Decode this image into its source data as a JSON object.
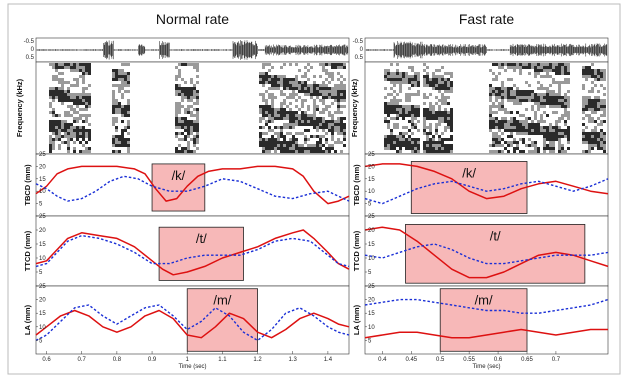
{
  "columns": [
    {
      "title": "Normal rate",
      "xlabel": "Time (sec)",
      "xlim": [
        0.57,
        1.46
      ],
      "xticks": [
        "0.6",
        "0.7",
        "0.8",
        "0.9",
        "1",
        "1.1",
        "1.2",
        "1.3",
        "1.4"
      ],
      "xtick_values": [
        0.6,
        0.7,
        0.8,
        0.9,
        1.0,
        1.1,
        1.2,
        1.3,
        1.4
      ]
    },
    {
      "title": "Fast rate",
      "xlabel": "Time (sec)",
      "xlim": [
        0.37,
        0.79
      ],
      "xticks": [
        "0.4",
        "0.45",
        "0.5",
        "0.55",
        "0.6",
        "0.65",
        "0.7"
      ],
      "xtick_values": [
        0.4,
        0.45,
        0.5,
        0.55,
        0.6,
        0.65,
        0.7
      ]
    }
  ],
  "spectrogram": {
    "ylabel": "Frequency (kHz)"
  },
  "colors": {
    "solid": "#dd1111",
    "dotted": "#1a2fd6",
    "box_fill": "#f7b8b8",
    "box_edge": "#222222"
  },
  "chart_data": [
    {
      "type": "line",
      "panel": "TBCD, normal rate",
      "ylabel": "TBCD (mm)",
      "ylim": [
        0,
        25
      ],
      "grid": false,
      "highlight": {
        "label": "/k/",
        "x": [
          0.9,
          1.05
        ],
        "y": [
          2,
          21
        ]
      },
      "series": [
        {
          "style": "solid",
          "color": "#dd1111",
          "x": [
            0.57,
            0.6,
            0.63,
            0.66,
            0.7,
            0.75,
            0.8,
            0.85,
            0.88,
            0.91,
            0.94,
            0.97,
            1.0,
            1.03,
            1.06,
            1.1,
            1.15,
            1.2,
            1.25,
            1.3,
            1.33,
            1.36,
            1.4,
            1.43,
            1.46
          ],
          "y": [
            9,
            12,
            17,
            19,
            20,
            20,
            20,
            19,
            17,
            11,
            6,
            7,
            12,
            16,
            18,
            19,
            19,
            20,
            20,
            19,
            16,
            10,
            5,
            6,
            8
          ]
        },
        {
          "style": "dotted",
          "color": "#1a2fd6",
          "x": [
            0.57,
            0.6,
            0.63,
            0.66,
            0.7,
            0.74,
            0.78,
            0.82,
            0.86,
            0.9,
            0.95,
            1.0,
            1.05,
            1.1,
            1.15,
            1.2,
            1.25,
            1.3,
            1.35,
            1.4,
            1.43,
            1.46
          ],
          "y": [
            13,
            11,
            8,
            6,
            7,
            10,
            14,
            16,
            15,
            12,
            10,
            10,
            12,
            15,
            14,
            11,
            8,
            7,
            9,
            10,
            8,
            6
          ]
        }
      ]
    },
    {
      "type": "line",
      "panel": "TTCD, normal rate",
      "ylabel": "TTCD (mm)",
      "ylim": [
        0,
        25
      ],
      "grid": false,
      "highlight": {
        "label": "/t/",
        "x": [
          0.92,
          1.16
        ],
        "y": [
          2,
          21
        ]
      },
      "series": [
        {
          "style": "solid",
          "color": "#dd1111",
          "x": [
            0.57,
            0.6,
            0.63,
            0.66,
            0.7,
            0.75,
            0.8,
            0.85,
            0.9,
            0.93,
            0.96,
            1.0,
            1.05,
            1.1,
            1.15,
            1.2,
            1.25,
            1.3,
            1.33,
            1.36,
            1.4,
            1.43,
            1.46
          ],
          "y": [
            8,
            9,
            13,
            17,
            19,
            18,
            17,
            14,
            9,
            6,
            4,
            5,
            7,
            10,
            12,
            14,
            17,
            19,
            20,
            17,
            12,
            8,
            6
          ]
        },
        {
          "style": "dotted",
          "color": "#1a2fd6",
          "x": [
            0.57,
            0.6,
            0.63,
            0.66,
            0.7,
            0.75,
            0.8,
            0.85,
            0.9,
            0.95,
            1.0,
            1.05,
            1.1,
            1.15,
            1.2,
            1.25,
            1.3,
            1.35,
            1.4,
            1.43,
            1.46
          ],
          "y": [
            7,
            8,
            12,
            16,
            18,
            17,
            15,
            12,
            8,
            8,
            10,
            11,
            11,
            11,
            13,
            16,
            17,
            16,
            11,
            8,
            7
          ]
        }
      ]
    },
    {
      "type": "line",
      "panel": "LA, normal rate",
      "ylabel": "LA (mm)",
      "ylim": [
        0,
        25
      ],
      "grid": false,
      "highlight": {
        "label": "/m/",
        "x": [
          1.0,
          1.2
        ],
        "y": [
          1,
          24
        ]
      },
      "series": [
        {
          "style": "solid",
          "color": "#dd1111",
          "x": [
            0.57,
            0.6,
            0.64,
            0.68,
            0.72,
            0.76,
            0.8,
            0.84,
            0.88,
            0.92,
            0.96,
            1.0,
            1.04,
            1.08,
            1.12,
            1.16,
            1.2,
            1.24,
            1.28,
            1.32,
            1.36,
            1.4,
            1.43,
            1.46
          ],
          "y": [
            7,
            10,
            14,
            16,
            14,
            10,
            8,
            10,
            14,
            16,
            13,
            7,
            6,
            10,
            15,
            13,
            8,
            6,
            9,
            13,
            15,
            13,
            11,
            10
          ]
        },
        {
          "style": "dotted",
          "color": "#1a2fd6",
          "x": [
            0.57,
            0.6,
            0.64,
            0.68,
            0.72,
            0.76,
            0.8,
            0.84,
            0.88,
            0.92,
            0.96,
            1.0,
            1.04,
            1.08,
            1.12,
            1.16,
            1.2,
            1.24,
            1.28,
            1.32,
            1.36,
            1.4,
            1.43,
            1.46
          ],
          "y": [
            5,
            7,
            12,
            17,
            18,
            14,
            11,
            14,
            17,
            18,
            14,
            9,
            12,
            17,
            14,
            8,
            5,
            9,
            15,
            17,
            14,
            10,
            8,
            7
          ]
        }
      ]
    },
    {
      "type": "line",
      "panel": "TBCD, fast rate",
      "ylabel": "TBCD (mm)",
      "ylim": [
        0,
        25
      ],
      "grid": false,
      "highlight": {
        "label": "/k/",
        "x": [
          0.45,
          0.65
        ],
        "y": [
          1,
          22
        ]
      },
      "series": [
        {
          "style": "solid",
          "color": "#dd1111",
          "x": [
            0.37,
            0.4,
            0.43,
            0.46,
            0.49,
            0.52,
            0.55,
            0.58,
            0.61,
            0.64,
            0.67,
            0.7,
            0.73,
            0.76,
            0.79
          ],
          "y": [
            20,
            21,
            21,
            20,
            18,
            15,
            10,
            7,
            8,
            11,
            13,
            14,
            12,
            10,
            9
          ]
        },
        {
          "style": "dotted",
          "color": "#1a2fd6",
          "x": [
            0.37,
            0.4,
            0.43,
            0.46,
            0.49,
            0.52,
            0.55,
            0.58,
            0.61,
            0.64,
            0.67,
            0.7,
            0.73,
            0.76,
            0.79
          ],
          "y": [
            7,
            5,
            8,
            11,
            13,
            14,
            12,
            10,
            11,
            13,
            14,
            12,
            10,
            12,
            15
          ]
        }
      ]
    },
    {
      "type": "line",
      "panel": "TTCD, fast rate",
      "ylabel": "TTCD (mm)",
      "ylim": [
        0,
        25
      ],
      "grid": false,
      "highlight": {
        "label": "/t/",
        "x": [
          0.44,
          0.75
        ],
        "y": [
          1,
          22
        ]
      },
      "series": [
        {
          "style": "solid",
          "color": "#dd1111",
          "x": [
            0.37,
            0.4,
            0.43,
            0.46,
            0.49,
            0.52,
            0.55,
            0.58,
            0.61,
            0.64,
            0.67,
            0.7,
            0.73,
            0.76,
            0.79
          ],
          "y": [
            20,
            21,
            20,
            16,
            11,
            6,
            3,
            3,
            5,
            8,
            11,
            12,
            11,
            9,
            7
          ]
        },
        {
          "style": "dotted",
          "color": "#1a2fd6",
          "x": [
            0.37,
            0.4,
            0.43,
            0.46,
            0.49,
            0.52,
            0.55,
            0.58,
            0.61,
            0.64,
            0.67,
            0.7,
            0.73,
            0.76,
            0.79
          ],
          "y": [
            11,
            10,
            12,
            14,
            15,
            13,
            10,
            8,
            8,
            9,
            10,
            11,
            11,
            11,
            12
          ]
        }
      ]
    },
    {
      "type": "line",
      "panel": "LA, fast rate",
      "ylabel": "LA (mm)",
      "ylim": [
        0,
        25
      ],
      "grid": false,
      "highlight": {
        "label": "/m/",
        "x": [
          0.5,
          0.65
        ],
        "y": [
          1,
          24
        ]
      },
      "series": [
        {
          "style": "solid",
          "color": "#dd1111",
          "x": [
            0.37,
            0.4,
            0.43,
            0.46,
            0.49,
            0.52,
            0.55,
            0.58,
            0.61,
            0.64,
            0.67,
            0.7,
            0.73,
            0.76,
            0.79
          ],
          "y": [
            6,
            7,
            8,
            8,
            7,
            6,
            6,
            7,
            8,
            9,
            8,
            7,
            8,
            9,
            9
          ]
        },
        {
          "style": "dotted",
          "color": "#1a2fd6",
          "x": [
            0.37,
            0.4,
            0.43,
            0.46,
            0.49,
            0.52,
            0.55,
            0.58,
            0.61,
            0.64,
            0.67,
            0.7,
            0.73,
            0.76,
            0.79
          ],
          "y": [
            18,
            19,
            20,
            20,
            19,
            18,
            17,
            16,
            16,
            15,
            15,
            16,
            17,
            18,
            20
          ]
        }
      ]
    }
  ]
}
